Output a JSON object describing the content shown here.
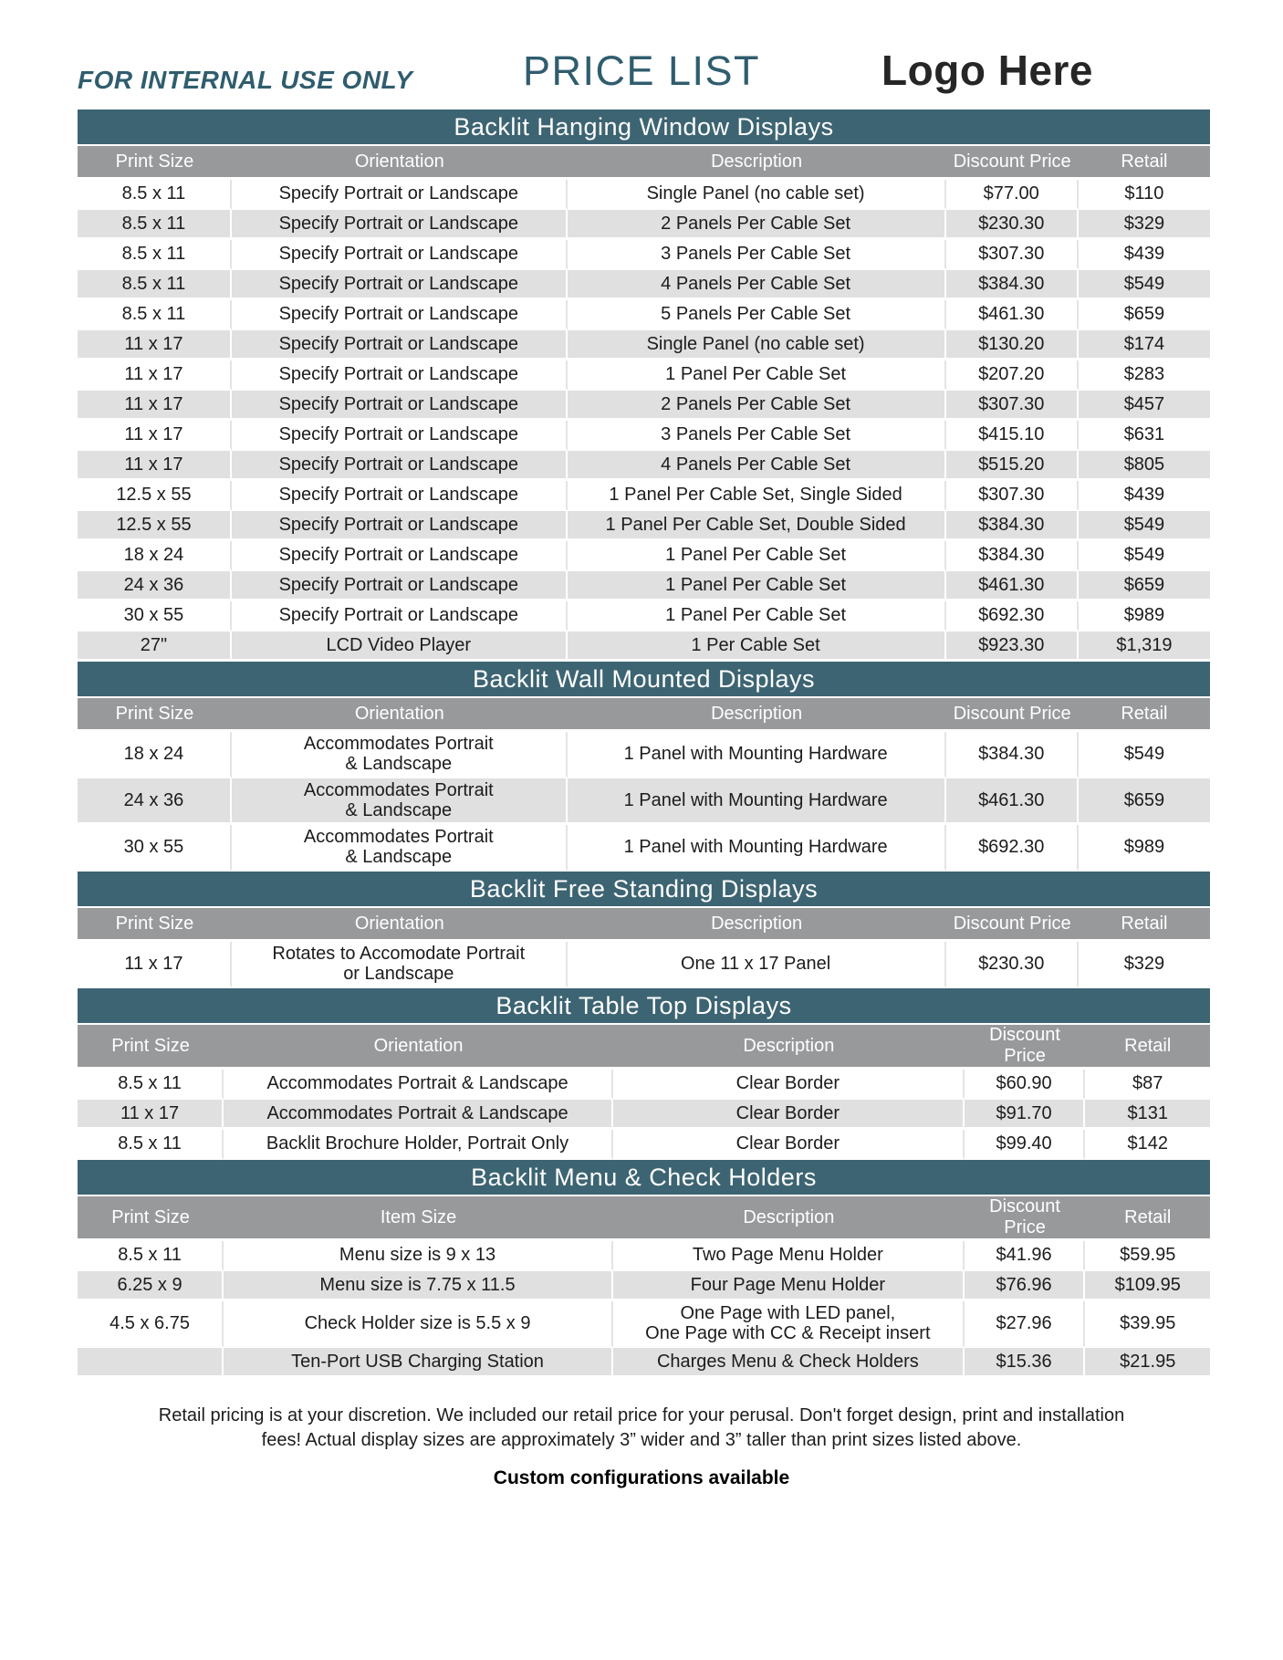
{
  "header": {
    "internal_note": "FOR INTERNAL USE ONLY",
    "title": "PRICE LIST",
    "logo_text": "Logo Here"
  },
  "colors": {
    "section_header_bg": "#3d6472",
    "column_header_bg": "#98999b",
    "row_alt_bg": "#e0e0e0",
    "title_teal": "#2f5d6e",
    "logo_color": "#262626",
    "text_color": "#1c1c1c"
  },
  "sections": [
    {
      "title": "Backlit Hanging Window Displays",
      "columns": [
        "Print Size",
        "Orientation",
        "Description",
        "Discount Price",
        "Retail"
      ],
      "rows": [
        [
          "8.5 x 11",
          "Specify Portrait or Landscape",
          "Single Panel (no cable set)",
          "$77.00",
          "$110"
        ],
        [
          "8.5 x 11",
          "Specify Portrait or Landscape",
          "2 Panels Per Cable Set",
          "$230.30",
          "$329"
        ],
        [
          "8.5 x 11",
          "Specify Portrait or Landscape",
          "3 Panels Per Cable Set",
          "$307.30",
          "$439"
        ],
        [
          "8.5 x 11",
          "Specify Portrait or Landscape",
          "4 Panels Per Cable Set",
          "$384.30",
          "$549"
        ],
        [
          "8.5 x 11",
          "Specify Portrait or Landscape",
          "5 Panels Per Cable Set",
          "$461.30",
          "$659"
        ],
        [
          "11 x 17",
          "Specify Portrait or Landscape",
          "Single Panel (no cable set)",
          "$130.20",
          "$174"
        ],
        [
          "11 x 17",
          "Specify Portrait or Landscape",
          "1 Panel Per Cable Set",
          "$207.20",
          "$283"
        ],
        [
          "11 x 17",
          "Specify Portrait or Landscape",
          "2 Panels Per Cable Set",
          "$307.30",
          "$457"
        ],
        [
          "11 x 17",
          "Specify Portrait or Landscape",
          "3 Panels Per Cable Set",
          "$415.10",
          "$631"
        ],
        [
          "11 x 17",
          "Specify Portrait or Landscape",
          "4 Panels Per Cable Set",
          "$515.20",
          "$805"
        ],
        [
          "12.5 x 55",
          "Specify Portrait or Landscape",
          "1 Panel Per Cable Set, Single Sided",
          "$307.30",
          "$439"
        ],
        [
          "12.5 x 55",
          "Specify Portrait or Landscape",
          "1 Panel Per Cable Set, Double Sided",
          "$384.30",
          "$549"
        ],
        [
          "18 x 24",
          "Specify Portrait or Landscape",
          "1 Panel Per Cable Set",
          "$384.30",
          "$549"
        ],
        [
          "24 x 36",
          "Specify Portrait or Landscape",
          "1 Panel Per Cable Set",
          "$461.30",
          "$659"
        ],
        [
          "30 x 55",
          "Specify Portrait or Landscape",
          "1 Panel Per Cable Set",
          "$692.30",
          "$989"
        ],
        [
          "27\"",
          "LCD Video Player",
          "1 Per Cable Set",
          "$923.30",
          "$1,319"
        ]
      ]
    },
    {
      "title": "Backlit Wall Mounted Displays",
      "columns": [
        "Print Size",
        "Orientation",
        "Description",
        "Discount Price",
        "Retail"
      ],
      "rows": [
        [
          "18 x 24",
          "Accommodates Portrait\n& Landscape",
          "1 Panel with Mounting Hardware",
          "$384.30",
          "$549"
        ],
        [
          "24 x 36",
          "Accommodates Portrait\n& Landscape",
          "1 Panel with Mounting Hardware",
          "$461.30",
          "$659"
        ],
        [
          "30 x 55",
          "Accommodates Portrait\n& Landscape",
          "1 Panel with Mounting Hardware",
          "$692.30",
          "$989"
        ]
      ]
    },
    {
      "title": "Backlit Free Standing Displays",
      "columns": [
        "Print Size",
        "Orientation",
        "Description",
        "Discount Price",
        "Retail"
      ],
      "rows": [
        [
          "11 x 17",
          "Rotates to Accomodate Portrait\nor Landscape",
          "One 11 x 17 Panel",
          "$230.30",
          "$329"
        ]
      ]
    },
    {
      "title": "Backlit Table Top Displays",
      "columns": [
        "Print Size",
        "Orientation",
        "Description",
        "Discount Price",
        "Retail"
      ],
      "rows": [
        [
          "8.5 x 11",
          "Accommodates Portrait & Landscape",
          "Clear Border",
          "$60.90",
          "$87"
        ],
        [
          "11 x 17",
          "Accommodates Portrait & Landscape",
          "Clear Border",
          "$91.70",
          "$131"
        ],
        [
          "8.5 x 11",
          "Backlit Brochure Holder, Portrait Only",
          "Clear Border",
          "$99.40",
          "$142"
        ]
      ]
    },
    {
      "title": "Backlit Menu & Check Holders",
      "columns": [
        "Print Size",
        "Item Size",
        "Description",
        "Discount Price",
        "Retail"
      ],
      "rows": [
        [
          "8.5 x 11",
          "Menu size is 9 x 13",
          "Two Page Menu Holder",
          "$41.96",
          "$59.95"
        ],
        [
          "6.25 x 9",
          "Menu size is 7.75 x 11.5",
          "Four Page Menu Holder",
          "$76.96",
          "$109.95"
        ],
        [
          "4.5 x 6.75",
          "Check Holder size is 5.5 x 9",
          "One Page with LED panel,\nOne Page with CC & Receipt insert",
          "$27.96",
          "$39.95"
        ],
        [
          "",
          "Ten-Port USB Charging Station",
          "Charges Menu & Check Holders",
          "$15.36",
          "$21.95"
        ]
      ]
    }
  ],
  "footer": {
    "note": "Retail pricing is at your discretion. We included our retail price for your perusal. Don't forget design, print and installation fees! Actual display sizes are approximately 3” wider and 3” taller than print sizes listed above.",
    "custom_note": "Custom configurations available"
  }
}
